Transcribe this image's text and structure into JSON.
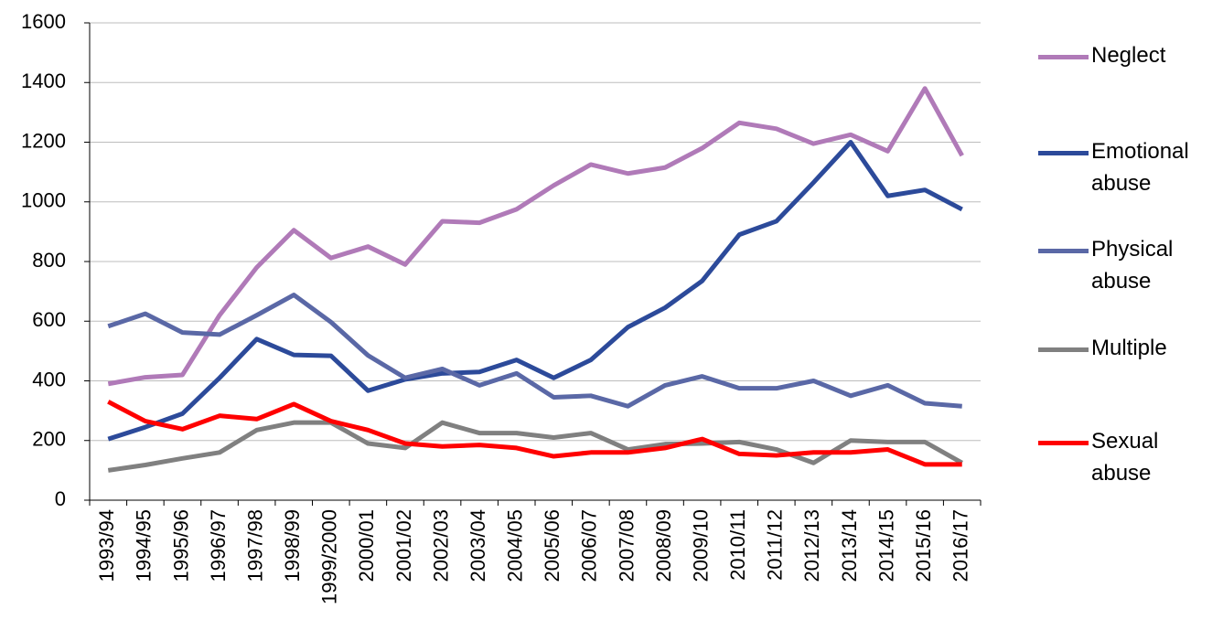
{
  "chart_data": {
    "type": "line",
    "categories": [
      "1993/94",
      "1994/95",
      "1995/96",
      "1996/97",
      "1997/98",
      "1998/99",
      "1999/2000",
      "2000/01",
      "2001/02",
      "2002/03",
      "2003/04",
      "2004/05",
      "2005/06",
      "2006/07",
      "2007/08",
      "2008/09",
      "2009/10",
      "2010/11",
      "2011/12",
      "2012/13",
      "2013/14",
      "2014/15",
      "2015/16",
      "2016/17"
    ],
    "series": [
      {
        "name": "Neglect",
        "color": "#b07ab8",
        "values": [
          390,
          412,
          420,
          620,
          780,
          905,
          812,
          850,
          790,
          935,
          930,
          975,
          1055,
          1125,
          1095,
          1115,
          1180,
          1265,
          1245,
          1195,
          1225,
          1170,
          1380,
          1155
        ]
      },
      {
        "name": "Emotional abuse",
        "color": "#2c4a9a",
        "values": [
          205,
          245,
          290,
          410,
          540,
          487,
          484,
          367,
          405,
          425,
          430,
          470,
          410,
          470,
          580,
          645,
          735,
          890,
          935,
          1065,
          1200,
          1020,
          1040,
          975
        ]
      },
      {
        "name": "Physical abuse",
        "color": "#5a68a6",
        "values": [
          583,
          625,
          562,
          555,
          620,
          688,
          597,
          485,
          410,
          440,
          385,
          425,
          345,
          350,
          315,
          385,
          415,
          375,
          375,
          400,
          350,
          385,
          325,
          315
        ]
      },
      {
        "name": "Multiple",
        "color": "#808080",
        "values": [
          100,
          118,
          140,
          160,
          235,
          260,
          260,
          190,
          175,
          260,
          225,
          225,
          210,
          225,
          170,
          188,
          190,
          195,
          170,
          125,
          200,
          195,
          195,
          125
        ]
      },
      {
        "name": "Sexual abuse",
        "color": "#ff0000",
        "values": [
          330,
          265,
          238,
          283,
          272,
          322,
          265,
          235,
          190,
          180,
          185,
          175,
          147,
          160,
          160,
          175,
          205,
          155,
          150,
          160,
          160,
          170,
          120,
          120
        ]
      }
    ],
    "ylim": [
      0,
      1600
    ],
    "yticks": [
      0,
      200,
      400,
      600,
      800,
      1000,
      1200,
      1400,
      1600
    ],
    "grid": true,
    "legend": "right"
  }
}
